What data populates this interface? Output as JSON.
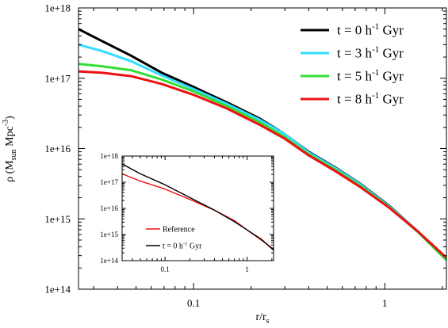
{
  "chart_data": [
    {
      "type": "line",
      "xlabel": "r/r",
      "xlabel_sub": "s",
      "ylabel": "ρ (M",
      "ylabel_sub": "sun",
      "ylabel_unit": " Mpc",
      "ylabel_sup": "-3",
      "ylabel_close": ")",
      "x_scale": "log",
      "y_scale": "log",
      "xlim": [
        0.025,
        2.1
      ],
      "ylim": [
        100000000000000.0,
        1e+18
      ],
      "x_ticks": [
        {
          "value": 0.1,
          "label": "0.1"
        },
        {
          "value": 1,
          "label": "1"
        }
      ],
      "y_ticks": [
        {
          "value": 100000000000000.0,
          "label": "1e+14"
        },
        {
          "value": 1000000000000000.0,
          "label": "1e+15"
        },
        {
          "value": 1e+16,
          "label": "1e+16"
        },
        {
          "value": 1e+17,
          "label": "1e+17"
        },
        {
          "value": 1e+18,
          "label": "1e+18"
        }
      ],
      "legend_position": "top-right",
      "series": [
        {
          "name_main": "t = 0 h",
          "name_sup": "-1",
          "name_tail": " Gyr",
          "color": "#000000",
          "points": [
            [
              0.025,
              5e+17
            ],
            [
              0.033,
              3.4e+17
            ],
            [
              0.047,
              2.1e+17
            ],
            [
              0.068,
              1.2e+17
            ],
            [
              0.1,
              7.5e+16
            ],
            [
              0.15,
              4.5e+16
            ],
            [
              0.22,
              2.7e+16
            ],
            [
              0.3,
              1.6e+16
            ],
            [
              0.4,
              9000000000000000.0
            ],
            [
              0.55,
              5400000000000000.0
            ],
            [
              0.75,
              3100000000000000.0
            ],
            [
              1.05,
              1550000000000000.0
            ],
            [
              1.5,
              650000000000000.0
            ],
            [
              2.1,
              260000000000000.0
            ]
          ]
        },
        {
          "name_main": "t = 3 h",
          "name_sup": "-1",
          "name_tail": " Gyr",
          "color": "#33ddff",
          "points": [
            [
              0.025,
              3e+17
            ],
            [
              0.033,
              2.45e+17
            ],
            [
              0.047,
              1.75e+17
            ],
            [
              0.068,
              1.1e+17
            ],
            [
              0.1,
              7e+16
            ],
            [
              0.15,
              4.3e+16
            ],
            [
              0.22,
              2.6e+16
            ],
            [
              0.3,
              1.6e+16
            ],
            [
              0.4,
              8800000000000000.0
            ],
            [
              0.55,
              5300000000000000.0
            ],
            [
              0.75,
              3050000000000000.0
            ],
            [
              1.05,
              1520000000000000.0
            ],
            [
              1.5,
              650000000000000.0
            ],
            [
              2.1,
              260000000000000.0
            ]
          ]
        },
        {
          "name_main": "t = 5 h",
          "name_sup": "-1",
          "name_tail": " Gyr",
          "color": "#33dd33",
          "points": [
            [
              0.025,
              1.6e+17
            ],
            [
              0.033,
              1.48e+17
            ],
            [
              0.047,
              1.3e+17
            ],
            [
              0.068,
              9.6e+16
            ],
            [
              0.1,
              6.5e+16
            ],
            [
              0.15,
              4e+16
            ],
            [
              0.22,
              2.4e+16
            ],
            [
              0.3,
              1.45e+16
            ],
            [
              0.4,
              8300000000000000.0
            ],
            [
              0.55,
              5000000000000000.0
            ],
            [
              0.75,
              2900000000000000.0
            ],
            [
              1.05,
              1480000000000000.0
            ],
            [
              1.5,
              640000000000000.0
            ],
            [
              2.1,
              260000000000000.0
            ]
          ]
        },
        {
          "name_main": "t = 8 h",
          "name_sup": "-1",
          "name_tail": " Gyr",
          "color": "#ee1111",
          "points": [
            [
              0.025,
              1.25e+17
            ],
            [
              0.033,
              1.2e+17
            ],
            [
              0.047,
              1.07e+17
            ],
            [
              0.068,
              8.3e+16
            ],
            [
              0.1,
              5.8e+16
            ],
            [
              0.15,
              3.7e+16
            ],
            [
              0.22,
              2.2e+16
            ],
            [
              0.3,
              1.38e+16
            ],
            [
              0.4,
              8000000000000000.0
            ],
            [
              0.55,
              4800000000000000.0
            ],
            [
              0.75,
              2800000000000000.0
            ],
            [
              1.05,
              1450000000000000.0
            ],
            [
              1.5,
              650000000000000.0
            ],
            [
              2.1,
              280000000000000.0
            ]
          ]
        }
      ]
    },
    {
      "type": "line",
      "x_scale": "log",
      "y_scale": "log",
      "xlim": [
        0.03,
        2.1
      ],
      "ylim": [
        100000000000000.0,
        1e+18
      ],
      "x_ticks": [
        {
          "value": 0.1,
          "label": "0.1"
        },
        {
          "value": 1,
          "label": "1"
        }
      ],
      "y_ticks": [
        {
          "value": 100000000000000.0,
          "label": "1e+14"
        },
        {
          "value": 1000000000000000.0,
          "label": "1e+15"
        },
        {
          "value": 1e+16,
          "label": "1e+16"
        },
        {
          "value": 1e+17,
          "label": "1e+17"
        },
        {
          "value": 1e+18,
          "label": "1e+18"
        }
      ],
      "legend_position": "bottom-left",
      "series": [
        {
          "name_main": "Reference",
          "name_sup": "",
          "name_tail": "",
          "color": "#ee1111",
          "points": [
            [
              0.03,
              2.1e+17
            ],
            [
              0.05,
              1.1e+17
            ],
            [
              0.1,
              5.5e+16
            ],
            [
              0.2,
              2.2e+16
            ],
            [
              0.4,
              8500000000000000.0
            ],
            [
              0.7,
              3400000000000000.0
            ],
            [
              1.0,
              1500000000000000.0
            ],
            [
              1.5,
              600000000000000.0
            ],
            [
              2.1,
              280000000000000.0
            ]
          ]
        },
        {
          "name_main": "t = 0 h",
          "name_sup": "-1",
          "name_tail": " Gyr",
          "color": "#000000",
          "points": [
            [
              0.03,
              5e+17
            ],
            [
              0.05,
              2.1e+17
            ],
            [
              0.1,
              8e+16
            ],
            [
              0.2,
              2.6e+16
            ],
            [
              0.4,
              8500000000000000.0
            ],
            [
              0.7,
              3100000000000000.0
            ],
            [
              1.0,
              1500000000000000.0
            ],
            [
              1.5,
              650000000000000.0
            ],
            [
              2.1,
              250000000000000.0
            ]
          ]
        }
      ]
    }
  ]
}
